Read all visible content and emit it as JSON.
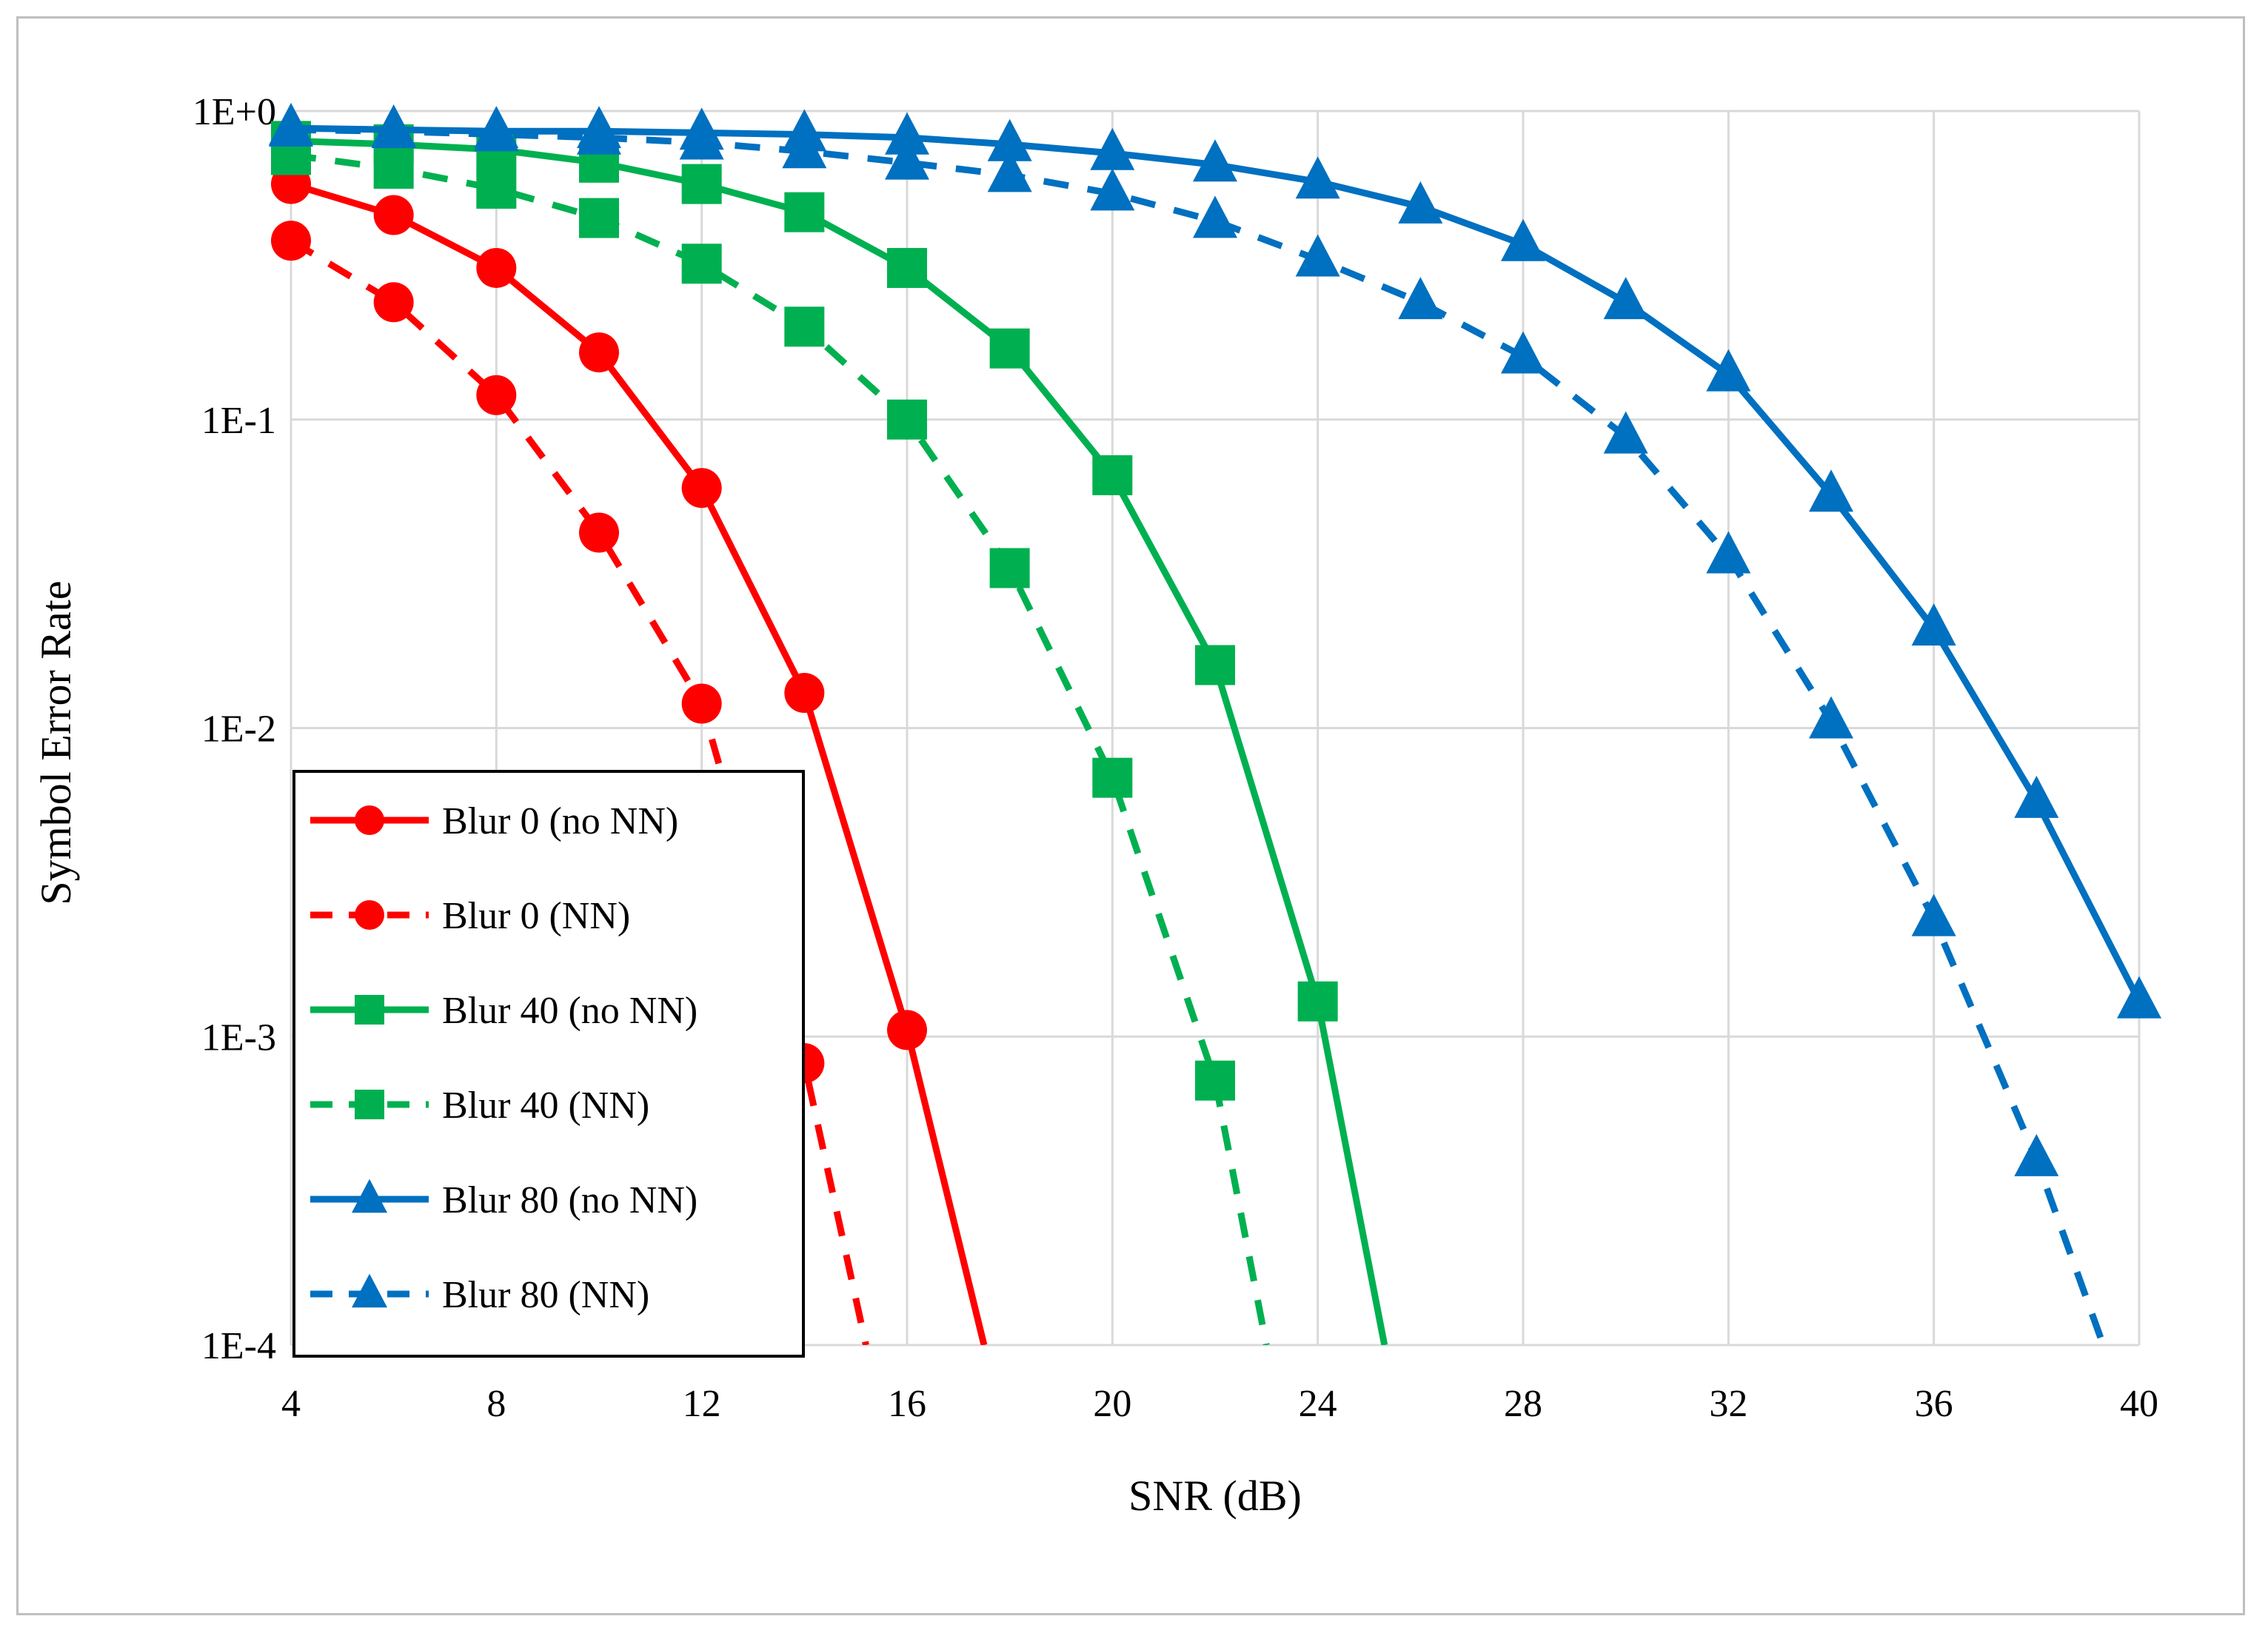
{
  "chart_data": {
    "type": "line",
    "title": "",
    "xlabel": "SNR (dB)",
    "ylabel": "Symbol Error Rate",
    "yscale": "log",
    "xlim": [
      4,
      40
    ],
    "ylim": [
      0.0001,
      1
    ],
    "xticks": [
      4,
      8,
      12,
      16,
      20,
      24,
      28,
      32,
      36,
      40
    ],
    "yticks": [
      {
        "value": 1,
        "label": "1E+0"
      },
      {
        "value": 0.1,
        "label": "1E-1"
      },
      {
        "value": 0.01,
        "label": "1E-2"
      },
      {
        "value": 0.001,
        "label": "1E-3"
      },
      {
        "value": 0.0001,
        "label": "1E-4"
      }
    ],
    "grid": true,
    "legend_position": "bottom-left",
    "series": [
      {
        "name": "Blur 0 (no NN)",
        "color": "#ff0000",
        "dash": "solid",
        "marker": "circle",
        "x": [
          4,
          6,
          8,
          10,
          12,
          14,
          16,
          17.5
        ],
        "y": [
          0.58,
          0.46,
          0.31,
          0.165,
          0.06,
          0.013,
          0.00105,
          0.0001
        ]
      },
      {
        "name": "Blur 0 (NN)",
        "color": "#ff0000",
        "dash": "dashed",
        "marker": "circle",
        "x": [
          4,
          6,
          8,
          10,
          12,
          14,
          15.2
        ],
        "y": [
          0.38,
          0.24,
          0.12,
          0.043,
          0.012,
          0.00082,
          0.0001
        ]
      },
      {
        "name": "Blur 40 (no NN)",
        "color": "#00b050",
        "dash": "solid",
        "marker": "square",
        "x": [
          4,
          6,
          8,
          10,
          12,
          14,
          16,
          18,
          20,
          22,
          24,
          25.3
        ],
        "y": [
          0.8,
          0.78,
          0.75,
          0.68,
          0.58,
          0.47,
          0.31,
          0.17,
          0.066,
          0.016,
          0.0013,
          0.0001
        ]
      },
      {
        "name": "Blur 40 (NN)",
        "color": "#00b050",
        "dash": "dashed",
        "marker": "square",
        "x": [
          4,
          6,
          8,
          10,
          12,
          14,
          16,
          18,
          20,
          22,
          23
        ],
        "y": [
          0.72,
          0.65,
          0.56,
          0.45,
          0.32,
          0.2,
          0.1,
          0.033,
          0.0069,
          0.00072,
          0.0001
        ]
      },
      {
        "name": "Blur 80 (no NN)",
        "color": "#0070c0",
        "dash": "solid",
        "marker": "triangle",
        "x": [
          4,
          6,
          8,
          10,
          12,
          14,
          16,
          18,
          20,
          22,
          24,
          26,
          28,
          30,
          32,
          34,
          36,
          38,
          40
        ],
        "y": [
          0.88,
          0.87,
          0.86,
          0.86,
          0.85,
          0.84,
          0.82,
          0.78,
          0.73,
          0.67,
          0.59,
          0.49,
          0.37,
          0.24,
          0.14,
          0.057,
          0.021,
          0.0058,
          0.0013
        ]
      },
      {
        "name": "Blur 80 (NN)",
        "color": "#0070c0",
        "dash": "dashed",
        "marker": "triangle",
        "x": [
          4,
          6,
          8,
          10,
          12,
          14,
          16,
          18,
          20,
          22,
          24,
          26,
          28,
          30,
          32,
          34,
          36,
          38,
          39.3
        ],
        "y": [
          0.87,
          0.86,
          0.84,
          0.82,
          0.79,
          0.74,
          0.68,
          0.62,
          0.54,
          0.44,
          0.33,
          0.24,
          0.16,
          0.088,
          0.036,
          0.0105,
          0.0024,
          0.0004,
          0.0001
        ]
      }
    ]
  }
}
